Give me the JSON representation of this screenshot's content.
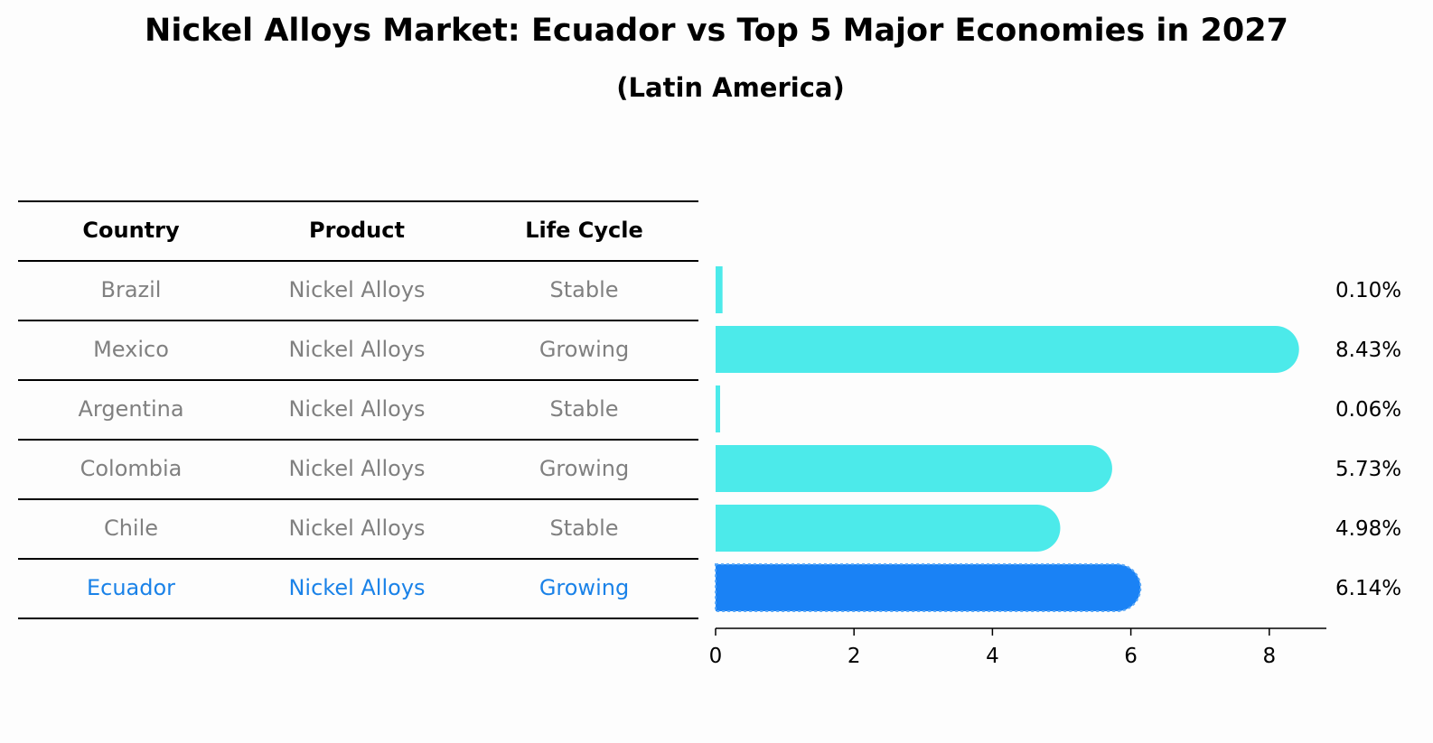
{
  "title": "Nickel Alloys Market: Ecuador vs Top 5 Major Economies in 2027",
  "subtitle": "(Latin America)",
  "table": {
    "headers": [
      "Country",
      "Product",
      "Life Cycle"
    ],
    "rows": [
      {
        "country": "Brazil",
        "product": "Nickel Alloys",
        "life_cycle": "Stable"
      },
      {
        "country": "Mexico",
        "product": "Nickel Alloys",
        "life_cycle": "Growing"
      },
      {
        "country": "Argentina",
        "product": "Nickel Alloys",
        "life_cycle": "Stable"
      },
      {
        "country": "Colombia",
        "product": "Nickel Alloys",
        "life_cycle": "Growing"
      },
      {
        "country": "Chile",
        "product": "Nickel Alloys",
        "life_cycle": "Stable"
      },
      {
        "country": "Ecuador",
        "product": "Nickel Alloys",
        "life_cycle": "Growing"
      }
    ]
  },
  "colors": {
    "bar": "#4ceaea",
    "highlight": "#1a82f5",
    "text_muted": "#808080",
    "text_highlight": "#1a82e8"
  },
  "chart_data": {
    "type": "bar",
    "orientation": "horizontal",
    "title": "Nickel Alloys Market: Ecuador vs Top 5 Major Economies in 2027",
    "subtitle": "(Latin America)",
    "categories": [
      "Brazil",
      "Mexico",
      "Argentina",
      "Colombia",
      "Chile",
      "Ecuador"
    ],
    "values": [
      0.1,
      8.43,
      0.06,
      5.73,
      4.98,
      6.14
    ],
    "value_labels": [
      "0.10%",
      "8.43%",
      "0.06%",
      "5.73%",
      "4.98%",
      "6.14%"
    ],
    "highlight": "Ecuador",
    "xlim": [
      0,
      8.85
    ],
    "xticks": [
      0,
      2,
      4,
      6,
      8
    ],
    "xlabel": "",
    "ylabel": ""
  }
}
